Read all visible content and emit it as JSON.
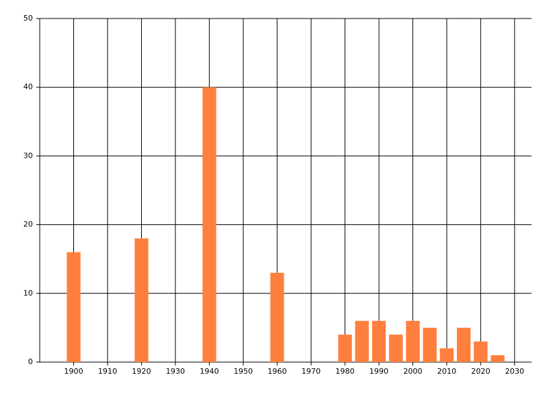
{
  "chart_data": {
    "type": "bar",
    "x": [
      1900,
      1920,
      1940,
      1960,
      1980,
      1985,
      1990,
      1995,
      2000,
      2005,
      2010,
      2015,
      2020,
      2025
    ],
    "values": [
      16,
      18,
      40,
      13,
      4,
      6,
      6,
      4,
      6,
      5,
      2,
      5,
      3,
      1
    ],
    "color": "#ff7f3f",
    "xlim": [
      1890,
      2035
    ],
    "xticks": [
      1900,
      1910,
      1920,
      1930,
      1940,
      1950,
      1960,
      1970,
      1980,
      1990,
      2000,
      2010,
      2020,
      2030
    ],
    "ylim": [
      0,
      50
    ],
    "yticks": [
      0,
      10,
      20,
      30,
      40,
      50
    ],
    "grid": true
  }
}
